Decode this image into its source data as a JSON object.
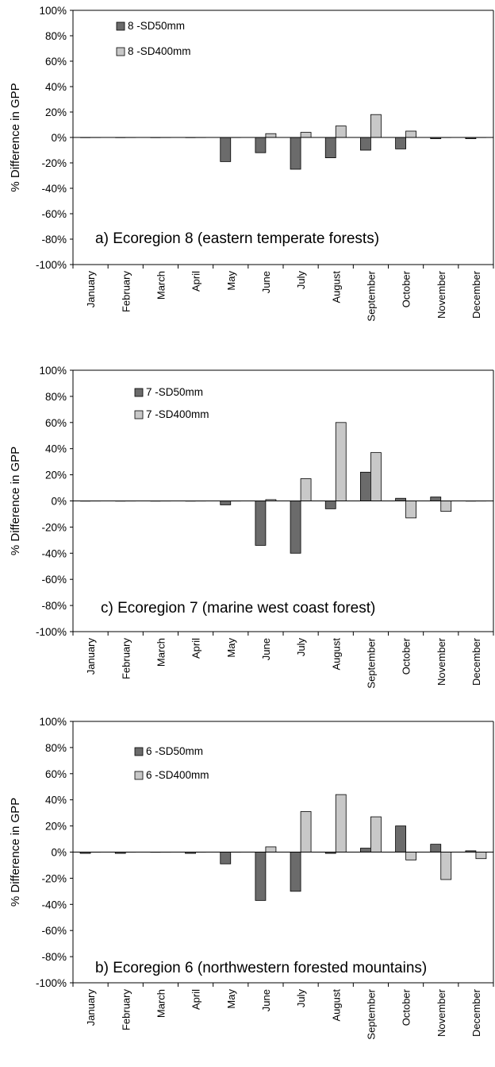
{
  "chart_data": [
    {
      "type": "bar",
      "panel_letter": "a)",
      "title": "Ecoregion 8 (eastern temperate forests)",
      "ylabel": "% Difference in GPP",
      "ylim": [
        -100,
        100
      ],
      "yticks": [
        "100%",
        "80%",
        "60%",
        "40%",
        "20%",
        "0%",
        "-20%",
        "-40%",
        "-60%",
        "-80%",
        "-100%"
      ],
      "categories": [
        "January",
        "February",
        "March",
        "April",
        "May",
        "June",
        "July",
        "August",
        "September",
        "October",
        "November",
        "December"
      ],
      "series": [
        {
          "name": "8 -SD50mm",
          "color": "#6b6b6b",
          "values": [
            0,
            0,
            0,
            0,
            -19,
            -12,
            -25,
            -16,
            -10,
            -9,
            -1,
            -1
          ]
        },
        {
          "name": "8 -SD400mm",
          "color": "#c8c8c8",
          "values": [
            0,
            0,
            0,
            0,
            0,
            3,
            4,
            9,
            18,
            5,
            0,
            0
          ]
        }
      ],
      "legend_position": "top-left"
    },
    {
      "type": "bar",
      "panel_letter": "c)",
      "title": "Ecoregion 7 (marine west coast forest)",
      "ylabel": "% Difference in GPP",
      "ylim": [
        -100,
        100
      ],
      "yticks": [
        "100%",
        "80%",
        "60%",
        "40%",
        "20%",
        "0%",
        "-20%",
        "-40%",
        "-60%",
        "-80%",
        "-100%"
      ],
      "categories": [
        "January",
        "February",
        "March",
        "April",
        "May",
        "June",
        "July",
        "August",
        "September",
        "October",
        "November",
        "December"
      ],
      "series": [
        {
          "name": "7 -SD50mm",
          "color": "#6b6b6b",
          "values": [
            0,
            0,
            0,
            0,
            -3,
            -34,
            -40,
            -6,
            22,
            2,
            3,
            0
          ]
        },
        {
          "name": "7 -SD400mm",
          "color": "#c8c8c8",
          "values": [
            0,
            0,
            0,
            0,
            0,
            1,
            17,
            60,
            37,
            -13,
            -8,
            0
          ]
        }
      ],
      "legend_position": "top-left"
    },
    {
      "type": "bar",
      "panel_letter": "b)",
      "title": "Ecoregion 6 (northwestern forested mountains)",
      "ylabel": "% Difference in GPP",
      "ylim": [
        -100,
        100
      ],
      "yticks": [
        "100%",
        "80%",
        "60%",
        "40%",
        "20%",
        "0%",
        "-20%",
        "-40%",
        "-60%",
        "-80%",
        "-100%"
      ],
      "categories": [
        "January",
        "February",
        "March",
        "April",
        "May",
        "June",
        "July",
        "August",
        "September",
        "October",
        "November",
        "December"
      ],
      "series": [
        {
          "name": "6 -SD50mm",
          "color": "#6b6b6b",
          "values": [
            -1,
            -1,
            0,
            -1,
            -9,
            -37,
            -30,
            -1,
            3,
            20,
            6,
            1
          ]
        },
        {
          "name": "6 -SD400mm",
          "color": "#c8c8c8",
          "values": [
            0,
            0,
            0,
            0,
            0,
            4,
            31,
            44,
            27,
            -6,
            -21,
            -5
          ]
        }
      ],
      "legend_position": "top-left"
    }
  ]
}
